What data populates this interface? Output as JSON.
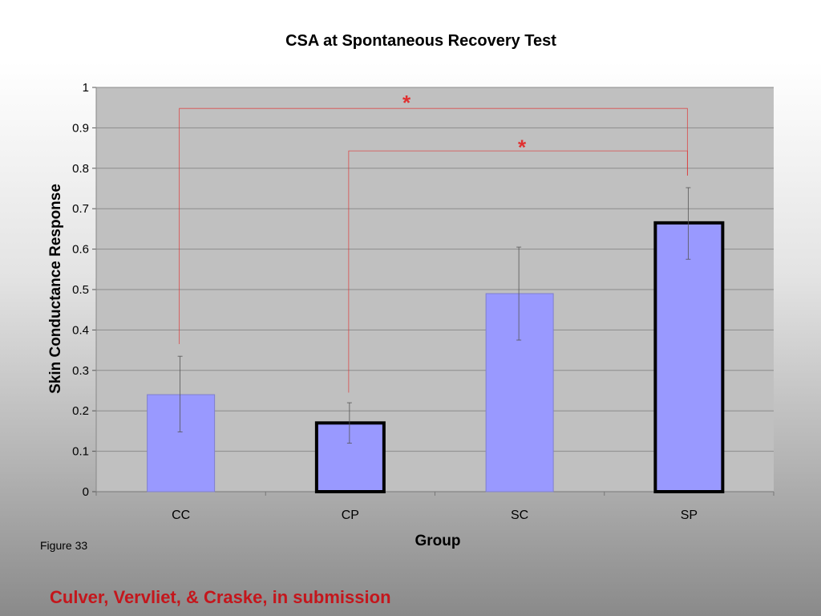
{
  "slide": {
    "figure_label": "Figure 33",
    "citation": "Culver, Vervliet, & Craske, in submission"
  },
  "colors": {
    "bar_fill": "#9999ff",
    "plot_background": "#c0c0c0",
    "gridline": "#8c8c8c",
    "significance": "#e03030",
    "citation": "#c4161c"
  },
  "chart_data": {
    "type": "bar",
    "title": "CSA at Spontaneous Recovery Test",
    "xlabel": "Group",
    "ylabel": "Skin Conductance Response",
    "categories": [
      "CC",
      "CP",
      "SC",
      "SP"
    ],
    "values": [
      0.24,
      0.17,
      0.49,
      0.665
    ],
    "error_bars": [
      [
        0.148,
        0.335
      ],
      [
        0.12,
        0.22
      ],
      [
        0.375,
        0.605
      ],
      [
        0.575,
        0.752
      ]
    ],
    "highlighted": [
      false,
      true,
      false,
      true
    ],
    "ylim": [
      0,
      1
    ],
    "yticks": [
      "0",
      "0.1",
      "0.2",
      "0.3",
      "0.4",
      "0.5",
      "0.6",
      "0.7",
      "0.8",
      "0.9",
      "1"
    ],
    "grid": true,
    "legend": "none",
    "significance": [
      {
        "from": "CC",
        "to": "SP",
        "label": "*"
      },
      {
        "from": "CP",
        "to": "SP",
        "label": "*"
      }
    ]
  }
}
